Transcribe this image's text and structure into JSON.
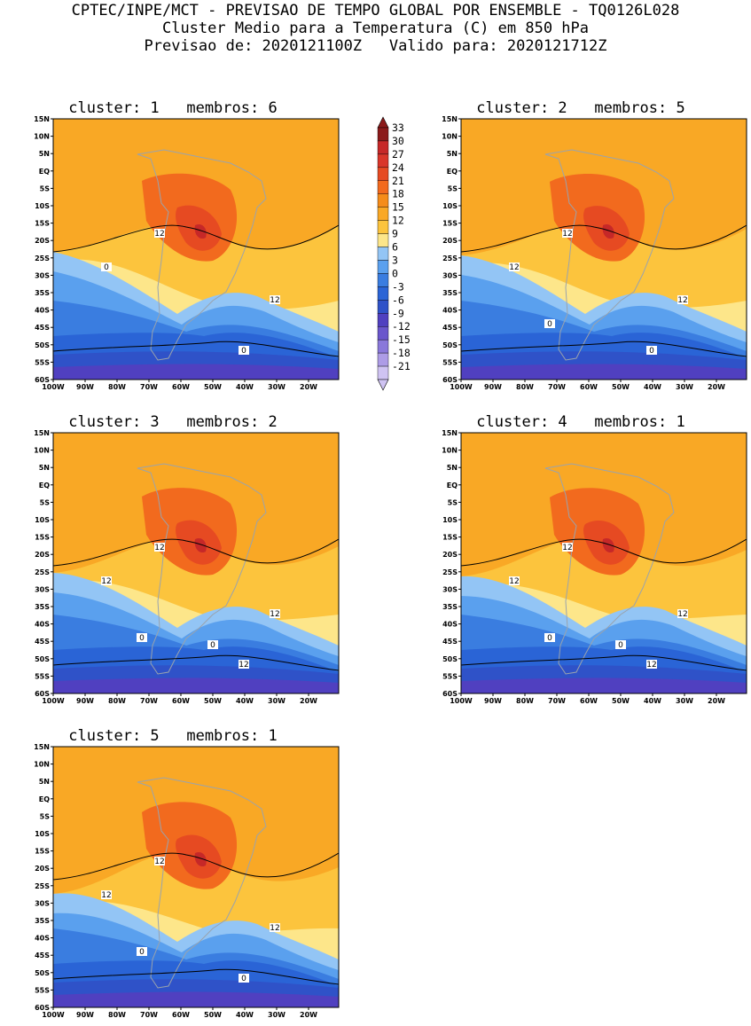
{
  "header": {
    "line1": "CPTEC/INPE/MCT - PREVISAO DE TEMPO GLOBAL POR ENSEMBLE - TQ0126L028",
    "line2": "Cluster Medio para a Temperatura (C) em 850 hPa",
    "line3": "Previsao de: 2020121100Z   Valido para: 2020121712Z"
  },
  "axes": {
    "lat_labels": [
      "15N",
      "10N",
      "5N",
      "EQ",
      "5S",
      "10S",
      "15S",
      "20S",
      "25S",
      "30S",
      "35S",
      "40S",
      "45S",
      "50S",
      "55S",
      "60S"
    ],
    "lon_labels": [
      "100W",
      "90W",
      "80W",
      "70W",
      "60W",
      "50W",
      "40W",
      "30W",
      "20W"
    ]
  },
  "colorbar": {
    "levels": [
      "33",
      "30",
      "27",
      "24",
      "21",
      "18",
      "15",
      "12",
      "9",
      "6",
      "3",
      "0",
      "-3",
      "-6",
      "-9",
      "-12",
      "-15",
      "-18",
      "-21"
    ],
    "colors": [
      "#8b1a1a",
      "#c62828",
      "#d9362a",
      "#e64a22",
      "#f26a1e",
      "#f58c1a",
      "#f9a825",
      "#fcc43d",
      "#fde68a",
      "#93c5f5",
      "#5aa0ee",
      "#3a7de0",
      "#2a64d6",
      "#2f52c8",
      "#5040c0",
      "#6a56cc",
      "#8a78da",
      "#ad9ce6",
      "#cfc3f2"
    ]
  },
  "panels": [
    {
      "title": "cluster: 1   membros: 6",
      "contour_labels": [
        "12",
        "12",
        "0",
        "0"
      ]
    },
    {
      "title": "cluster: 2   membros: 5",
      "contour_labels": [
        "12",
        "12",
        "12",
        "0",
        "0"
      ]
    },
    {
      "title": "cluster: 3   membros: 2",
      "contour_labels": [
        "12",
        "12",
        "12",
        "12",
        "0",
        "0"
      ]
    },
    {
      "title": "cluster: 4   membros: 1",
      "contour_labels": [
        "12",
        "12",
        "12",
        "12",
        "0",
        "0"
      ]
    },
    {
      "title": "cluster: 5   membros: 1",
      "contour_labels": [
        "12",
        "12",
        "12",
        "0",
        "0"
      ]
    }
  ]
}
